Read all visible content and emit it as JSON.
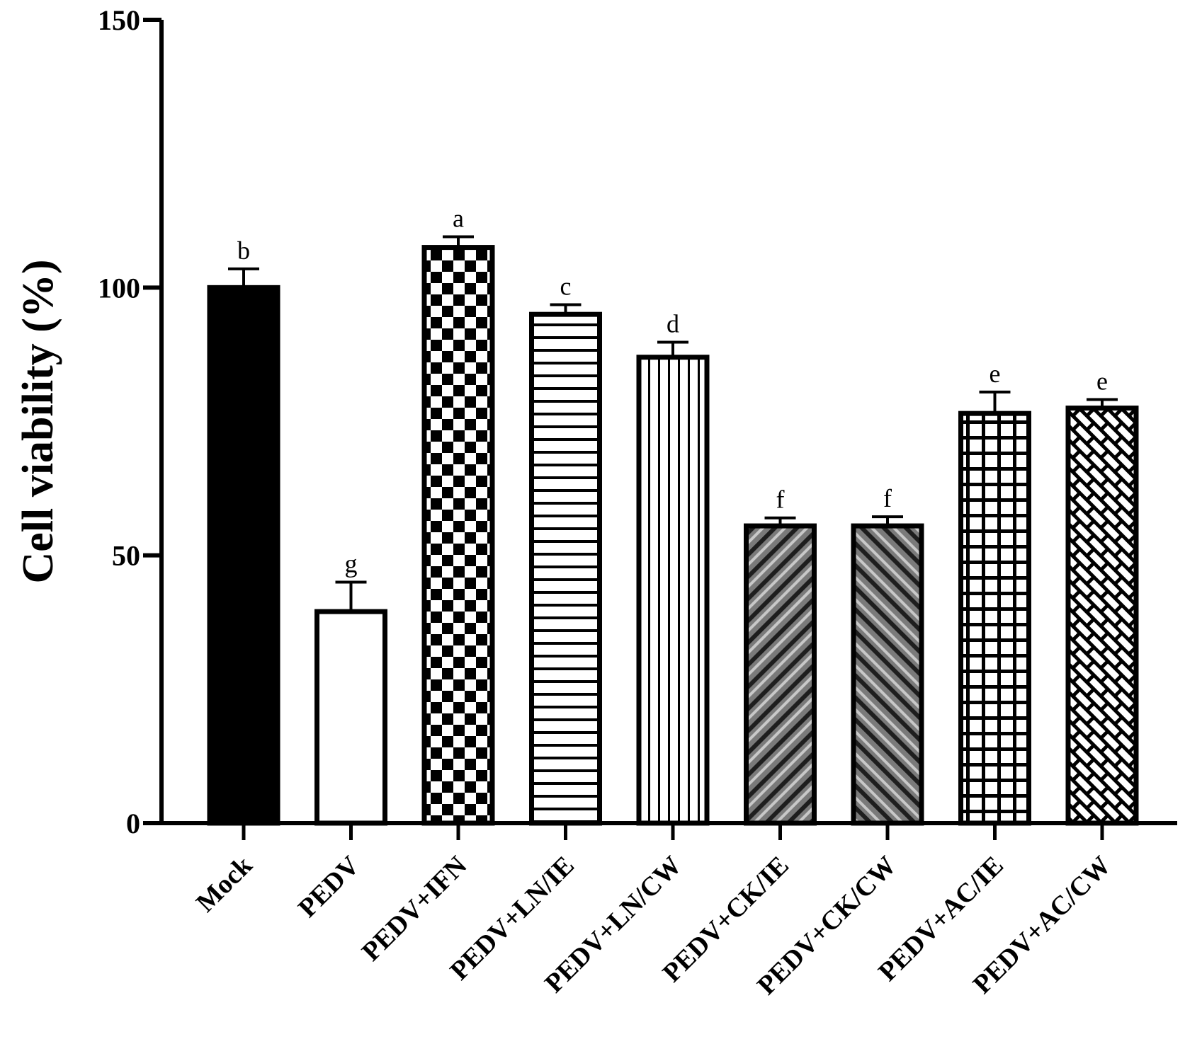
{
  "chart_data": {
    "type": "bar",
    "title": "",
    "xlabel": "",
    "ylabel": "Cell viability (%)",
    "ylim": [
      0,
      150
    ],
    "yticks": [
      0,
      50,
      100,
      150
    ],
    "grid": false,
    "categories": [
      "Mock",
      "PEDV",
      "PEDV+IFN",
      "PEDV+LN/IE",
      "PEDV+LN/CW",
      "PEDV+CK/IE",
      "PEDV+CK/CW",
      "PEDV+AC/IE",
      "PEDV+AC/CW"
    ],
    "values": [
      100,
      39.5,
      107.5,
      95,
      87,
      55.5,
      55.5,
      76.5,
      77.5
    ],
    "errors": [
      3.5,
      5.5,
      2,
      1.8,
      2.8,
      1.5,
      1.7,
      4,
      1.6
    ],
    "significance_letters": [
      "b",
      "g",
      "a",
      "c",
      "d",
      "f",
      "f",
      "e",
      "e"
    ],
    "bar_patterns": [
      "solid-black",
      "white",
      "checkerboard",
      "horizontal-lines",
      "vertical-lines",
      "diagonal-stripes-up",
      "diagonal-stripes-down",
      "grid",
      "brick-diagonal"
    ]
  }
}
